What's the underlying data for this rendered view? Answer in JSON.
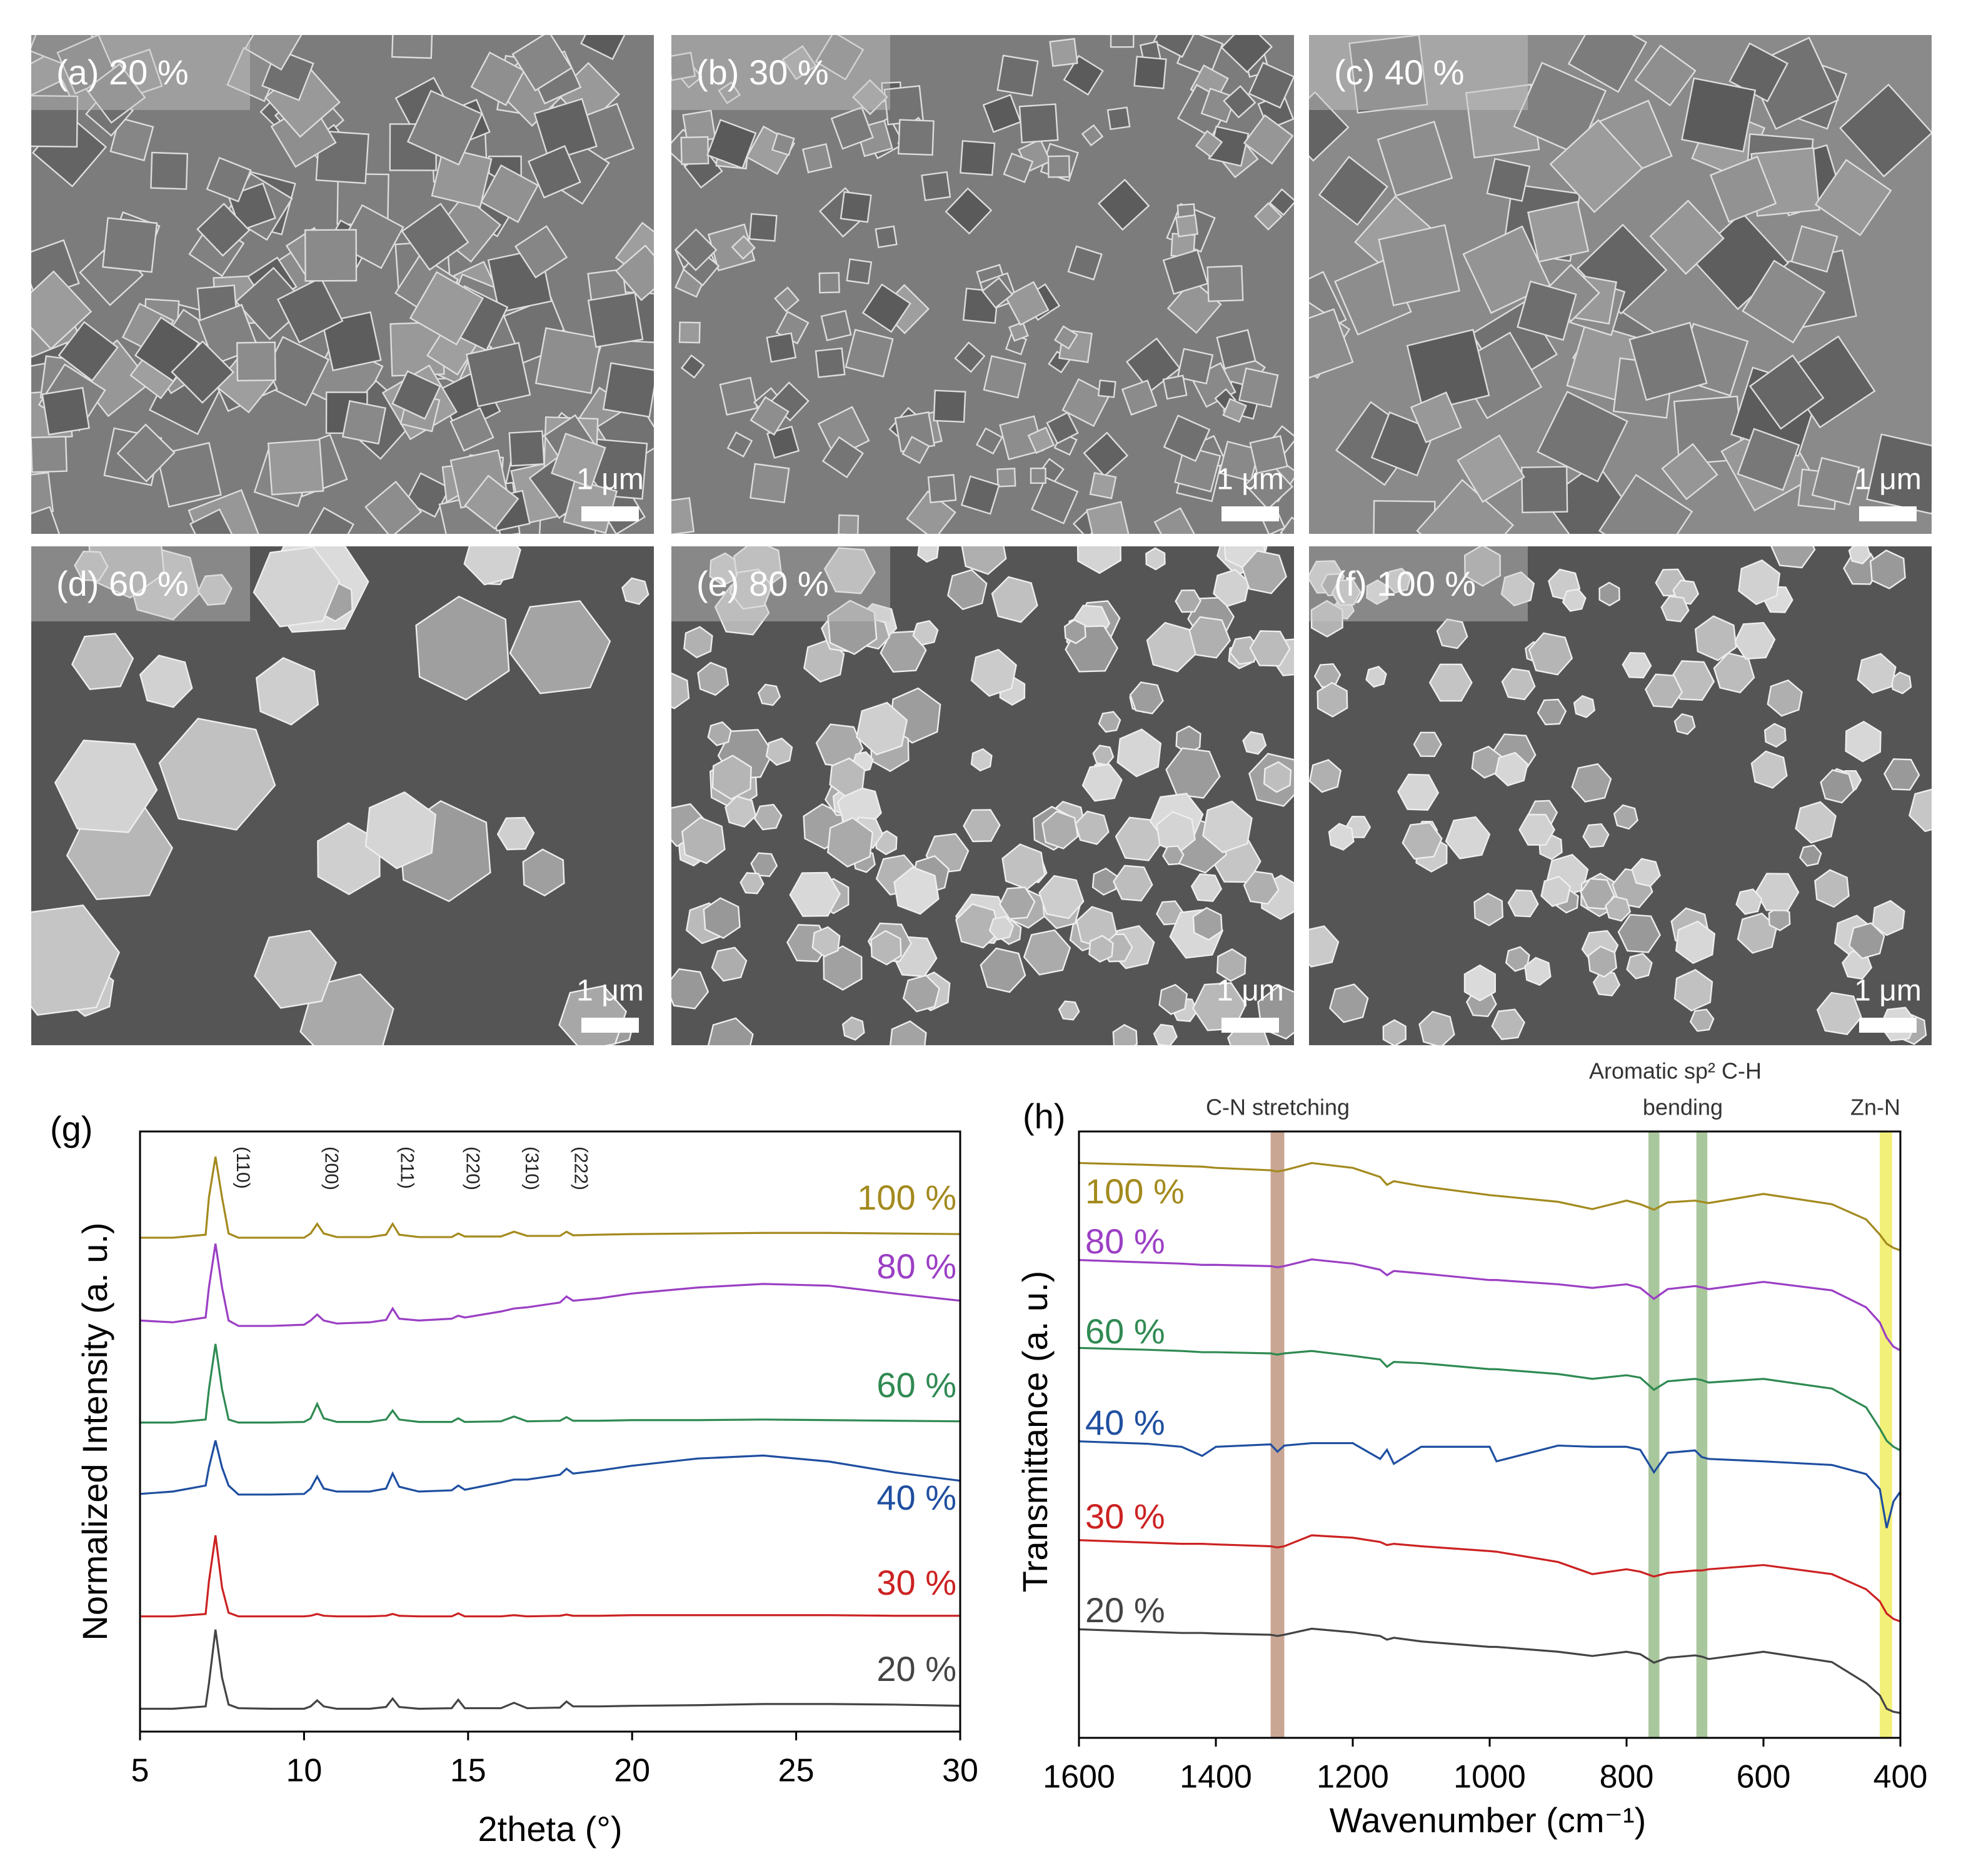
{
  "images": [
    {
      "label": "(a) 20 %",
      "scale": "1 μm"
    },
    {
      "label": "(b) 30 %",
      "scale": "1 μm"
    },
    {
      "label": "(c) 40 %",
      "scale": "1 μm"
    },
    {
      "label": "(d) 60 %",
      "scale": "1 μm"
    },
    {
      "label": "(e) 80 %",
      "scale": "1 μm"
    },
    {
      "label": "(f) 100 %",
      "scale": "1 μm"
    }
  ],
  "chart_data": [
    {
      "type": "line",
      "label": "(g)",
      "xlabel": "2theta (°)",
      "ylabel": "Normalized Intensity (a. u.)",
      "xlim": [
        5,
        30
      ],
      "xticks": [
        5,
        10,
        15,
        20,
        25,
        30
      ],
      "ylim": [
        0,
        100
      ],
      "annotations": [
        "(110)",
        "(200)",
        "(211)",
        "(220)",
        "(310)",
        "(222)"
      ],
      "x": [
        5,
        6,
        7,
        7.1,
        7.3,
        7.5,
        7.7,
        8,
        9,
        10,
        10.2,
        10.4,
        10.6,
        11,
        12,
        12.5,
        12.7,
        12.9,
        13.5,
        14.5,
        14.7,
        14.9,
        16,
        16.4,
        16.8,
        17.8,
        18.0,
        18.2,
        19,
        20,
        22,
        24,
        26,
        28,
        30
      ],
      "series": [
        {
          "name": "100 %",
          "color": "#a38a1e",
          "values": [
            82.3,
            82.3,
            82.8,
            89,
            95.8,
            89,
            83,
            82.3,
            82.3,
            82.3,
            83,
            84.6,
            83,
            82.4,
            82.4,
            82.8,
            84.6,
            82.8,
            82.4,
            82.4,
            83,
            82.5,
            82.5,
            83.3,
            82.6,
            82.6,
            83.3,
            82.7,
            82.8,
            82.9,
            83,
            83.1,
            83.1,
            83,
            82.9
          ]
        },
        {
          "name": "80 %",
          "color": "#9b3fc4",
          "values": [
            68.5,
            68.2,
            69,
            74,
            81.3,
            74,
            68.5,
            67.6,
            67.6,
            67.8,
            68.5,
            69.5,
            68.5,
            68,
            68.2,
            68.6,
            70.5,
            68.8,
            68.5,
            68.8,
            69.3,
            69,
            70,
            70.5,
            70.7,
            71.5,
            72.5,
            71.8,
            72.2,
            73,
            74,
            74.6,
            74.3,
            73,
            71.8
          ]
        },
        {
          "name": "60 %",
          "color": "#2f8a52",
          "values": [
            51.5,
            51.5,
            52,
            57,
            64.6,
            57,
            52,
            51.5,
            51.5,
            51.6,
            52.2,
            54.6,
            52.2,
            51.6,
            51.6,
            52,
            53.5,
            52,
            51.6,
            51.6,
            52.2,
            51.6,
            51.7,
            52.5,
            51.7,
            51.8,
            52.4,
            51.8,
            51.8,
            51.9,
            51.9,
            52,
            51.9,
            51.8,
            51.7
          ]
        },
        {
          "name": "40 %",
          "color": "#1f4fa0",
          "values": [
            39.6,
            40,
            41,
            44,
            48.5,
            44,
            41,
            39.5,
            39.5,
            39.6,
            40.5,
            42.5,
            40.5,
            40,
            40,
            40.5,
            43,
            40.8,
            40,
            40.2,
            41,
            40.3,
            41.5,
            42,
            42,
            42.8,
            43.8,
            43,
            43.5,
            44.3,
            45.5,
            46,
            45,
            43.2,
            41.8
          ]
        },
        {
          "name": "30 %",
          "color": "#cc2222",
          "values": [
            19.2,
            19.2,
            19.6,
            25,
            32.7,
            24,
            19.8,
            19.2,
            19.2,
            19.2,
            19.3,
            19.6,
            19.3,
            19.2,
            19.2,
            19.3,
            19.6,
            19.3,
            19.2,
            19.2,
            19.7,
            19.2,
            19.2,
            19.4,
            19.2,
            19.3,
            19.5,
            19.3,
            19.3,
            19.4,
            19.4,
            19.4,
            19.4,
            19.3,
            19.3
          ]
        },
        {
          "name": "20 %",
          "color": "#444444",
          "values": [
            3.8,
            3.8,
            4.2,
            8,
            17,
            9,
            4.5,
            3.9,
            3.8,
            3.8,
            4.2,
            5.2,
            4.2,
            3.8,
            3.8,
            4.1,
            5.5,
            4.1,
            3.8,
            3.9,
            5.3,
            3.9,
            3.9,
            4.8,
            3.9,
            4,
            5,
            4.2,
            4.2,
            4.3,
            4.4,
            4.6,
            4.6,
            4.5,
            4.3
          ]
        }
      ]
    },
    {
      "type": "line",
      "label": "(h)",
      "xlabel": "Wavenumber (cm⁻¹)",
      "ylabel": "Transmittance (a. u.)",
      "xlim": [
        1600,
        400
      ],
      "xticks": [
        1600,
        1400,
        1200,
        1000,
        800,
        600,
        400
      ],
      "ylim": [
        0,
        100
      ],
      "annotations": [
        "C-N stretching",
        "Aromatic sp² C-H",
        "bending",
        "Zn-N"
      ],
      "bands": [
        {
          "from": 1320,
          "to": 1300,
          "color": "#c9a693"
        },
        {
          "from": 768,
          "to": 752,
          "color": "#a9c79c"
        },
        {
          "from": 698,
          "to": 682,
          "color": "#a9c79c"
        },
        {
          "from": 430,
          "to": 412,
          "color": "#f3f07a"
        }
      ],
      "x": [
        1600,
        1500,
        1450,
        1420,
        1400,
        1320,
        1310,
        1300,
        1260,
        1200,
        1160,
        1150,
        1140,
        1100,
        1000,
        990,
        900,
        850,
        800,
        780,
        760,
        740,
        700,
        690,
        680,
        600,
        500,
        450,
        430,
        420,
        410,
        400
      ],
      "series": [
        {
          "name": "100 %",
          "color": "#a38a1e",
          "values": [
            94.8,
            94.5,
            94.3,
            94.2,
            94,
            93.6,
            93.4,
            93.6,
            94.8,
            94,
            92.5,
            91.2,
            91.8,
            91,
            89.5,
            89.4,
            88.4,
            87.2,
            88.6,
            88,
            87.1,
            88.3,
            88.6,
            88.4,
            88.2,
            89.7,
            88,
            85.5,
            83,
            81.5,
            80.8,
            80.4
          ]
        },
        {
          "name": "80 %",
          "color": "#9b3fc4",
          "values": [
            78.8,
            78.4,
            78.2,
            78,
            78,
            77.8,
            77.6,
            77.8,
            78.9,
            78.2,
            77.2,
            76.3,
            77,
            76.6,
            75.5,
            75.5,
            74.8,
            74.2,
            74.8,
            74.2,
            72.4,
            74,
            74.5,
            74.3,
            74,
            75.2,
            73.8,
            71,
            68.5,
            66,
            64.5,
            63.9
          ]
        },
        {
          "name": "60 %",
          "color": "#2f8a52",
          "values": [
            64.3,
            64,
            63.8,
            63.6,
            63.6,
            63.4,
            63.2,
            63.4,
            63.8,
            63,
            62.4,
            61.2,
            62,
            61.8,
            60.8,
            60.8,
            60,
            59.2,
            59.8,
            59.4,
            57.4,
            58.8,
            59.2,
            59,
            58.6,
            59.2,
            57.6,
            54.5,
            51,
            49,
            48,
            47.4
          ]
        },
        {
          "name": "40 %",
          "color": "#1f4fa0",
          "values": [
            48.9,
            48.5,
            48,
            46.5,
            48,
            48.4,
            47.2,
            48.2,
            48.6,
            48.6,
            46,
            47.5,
            45.2,
            48,
            48,
            45.6,
            48.2,
            48,
            48,
            47.5,
            43.8,
            47,
            47.4,
            46.3,
            46,
            45.6,
            45,
            43.5,
            41,
            34.6,
            39,
            40.6
          ]
        },
        {
          "name": "30 %",
          "color": "#cc2222",
          "values": [
            32.6,
            32.2,
            32,
            32,
            31.9,
            31.6,
            31.4,
            31.6,
            33.4,
            33,
            32.3,
            31.8,
            32,
            31.6,
            30.8,
            30.7,
            29,
            27,
            27.8,
            27.4,
            26.6,
            27.2,
            27.6,
            27.6,
            27.8,
            28.5,
            27,
            24.5,
            22.5,
            20.5,
            19.6,
            19.2
          ]
        },
        {
          "name": "20 %",
          "color": "#444444",
          "values": [
            17.9,
            17.5,
            17.3,
            17.3,
            17.2,
            17,
            16.8,
            17,
            18,
            17.4,
            16.8,
            16.2,
            16.5,
            15.9,
            15,
            15,
            14.2,
            13.5,
            14.2,
            13.8,
            12.4,
            13.2,
            13.6,
            13.4,
            13,
            14.2,
            12.5,
            9,
            7,
            4.8,
            4.3,
            4.1
          ]
        }
      ]
    }
  ]
}
